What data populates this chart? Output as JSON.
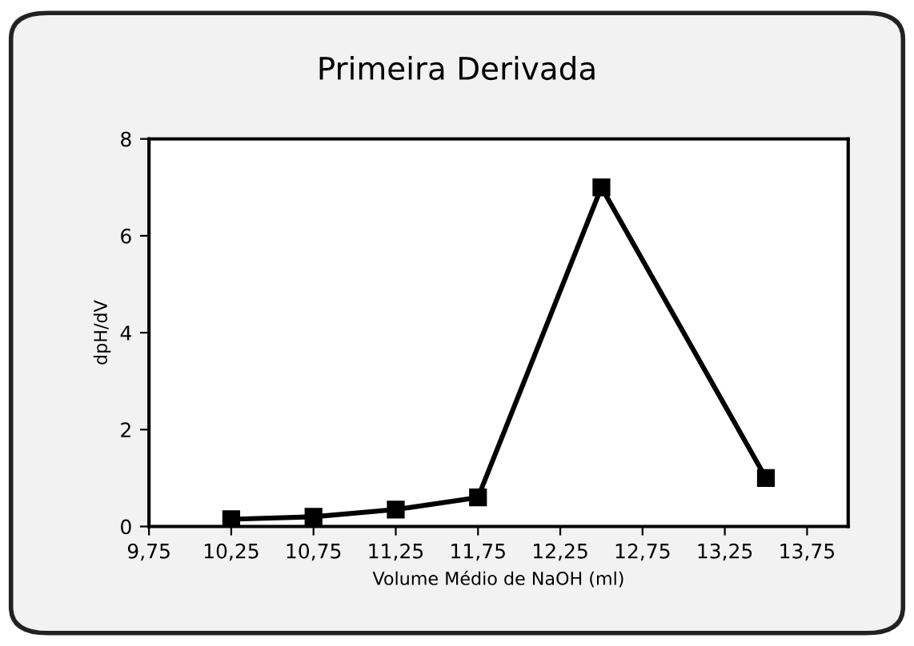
{
  "chart_data": {
    "type": "line",
    "title": "Primeira Derivada",
    "xlabel": "Volume Médio de NaOH (ml)",
    "ylabel": "dpH/dV",
    "x": [
      10.25,
      10.75,
      11.25,
      11.75,
      12.5,
      13.5
    ],
    "series": [
      {
        "color": "#000000",
        "values": [
          0.15,
          0.2,
          0.35,
          0.6,
          7.0,
          1.0
        ]
      }
    ],
    "xlim": [
      9.75,
      14.0
    ],
    "xticks": [
      {
        "value": 9.75,
        "label": "9,75"
      },
      {
        "value": 10.25,
        "label": "10,25"
      },
      {
        "value": 10.75,
        "label": "10,75"
      },
      {
        "value": 11.25,
        "label": "11,25"
      },
      {
        "value": 11.75,
        "label": "11,75"
      },
      {
        "value": 12.25,
        "label": "12,25"
      },
      {
        "value": 12.75,
        "label": "12,75"
      },
      {
        "value": 13.25,
        "label": "13,25"
      },
      {
        "value": 13.75,
        "label": "13,75"
      }
    ],
    "ylim": [
      0,
      8
    ],
    "yticks": [
      0,
      2,
      4,
      6,
      8
    ],
    "grid": false,
    "legend": false,
    "marker": "square",
    "line_style": "solid"
  }
}
